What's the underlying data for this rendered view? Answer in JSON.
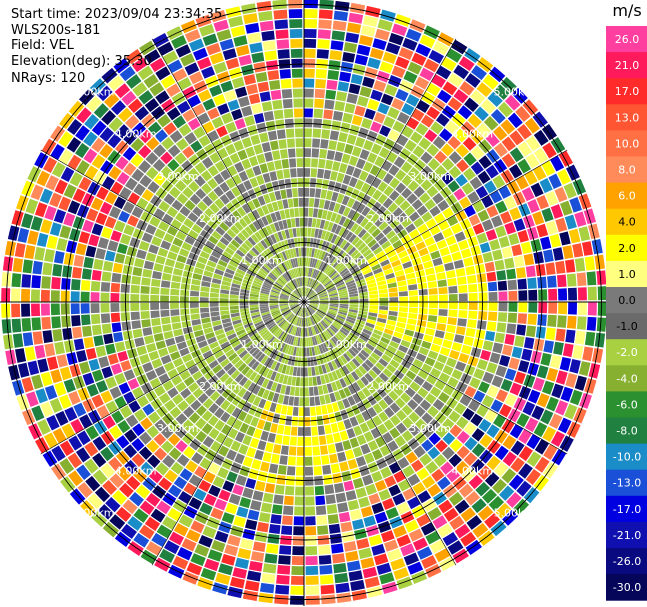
{
  "header": {
    "start_time": "Start time: 2023/09/04 23:34:35",
    "instrument": "WLS200s-181",
    "field": "Field: VEL",
    "elevation": "Elevation(deg): 35.30",
    "nrays": "NRays: 120"
  },
  "chart_data": {
    "type": "heatmap",
    "projection": "polar-ppi",
    "field": "VEL",
    "nrays": 120,
    "elevation_deg": 35.3,
    "range_rings_km": [
      1,
      2,
      3,
      4,
      5
    ],
    "range_labels": [
      "1.00km",
      "2.00km",
      "3.00km",
      "4.00km",
      "5.00km"
    ],
    "colorbar": {
      "unit": "m/s",
      "ticks": [
        "26.0",
        "21.0",
        "17.0",
        "13.0",
        "10.0",
        "8.0",
        "6.0",
        "4.0",
        "2.0",
        "1.0",
        "0.0",
        "-1.0",
        "-2.0",
        "-4.0",
        "-6.0",
        "-8.0",
        "-10.0",
        "-13.0",
        "-17.0",
        "-21.0",
        "-26.0",
        "-30.0"
      ],
      "colors": [
        "#ff3fa0",
        "#ff1a5c",
        "#ff2a2a",
        "#ff5533",
        "#ff7044",
        "#ff8a5a",
        "#ffa200",
        "#ffc800",
        "#ffff00",
        "#ffff80",
        "#7a7a7a",
        "#6a6a6a",
        "#a8d040",
        "#88b030",
        "#2a9030",
        "#208040",
        "#1a8cc8",
        "#1a50d8",
        "#0000e0",
        "#1010b0",
        "#0a0a80",
        "#05055a"
      ]
    }
  }
}
